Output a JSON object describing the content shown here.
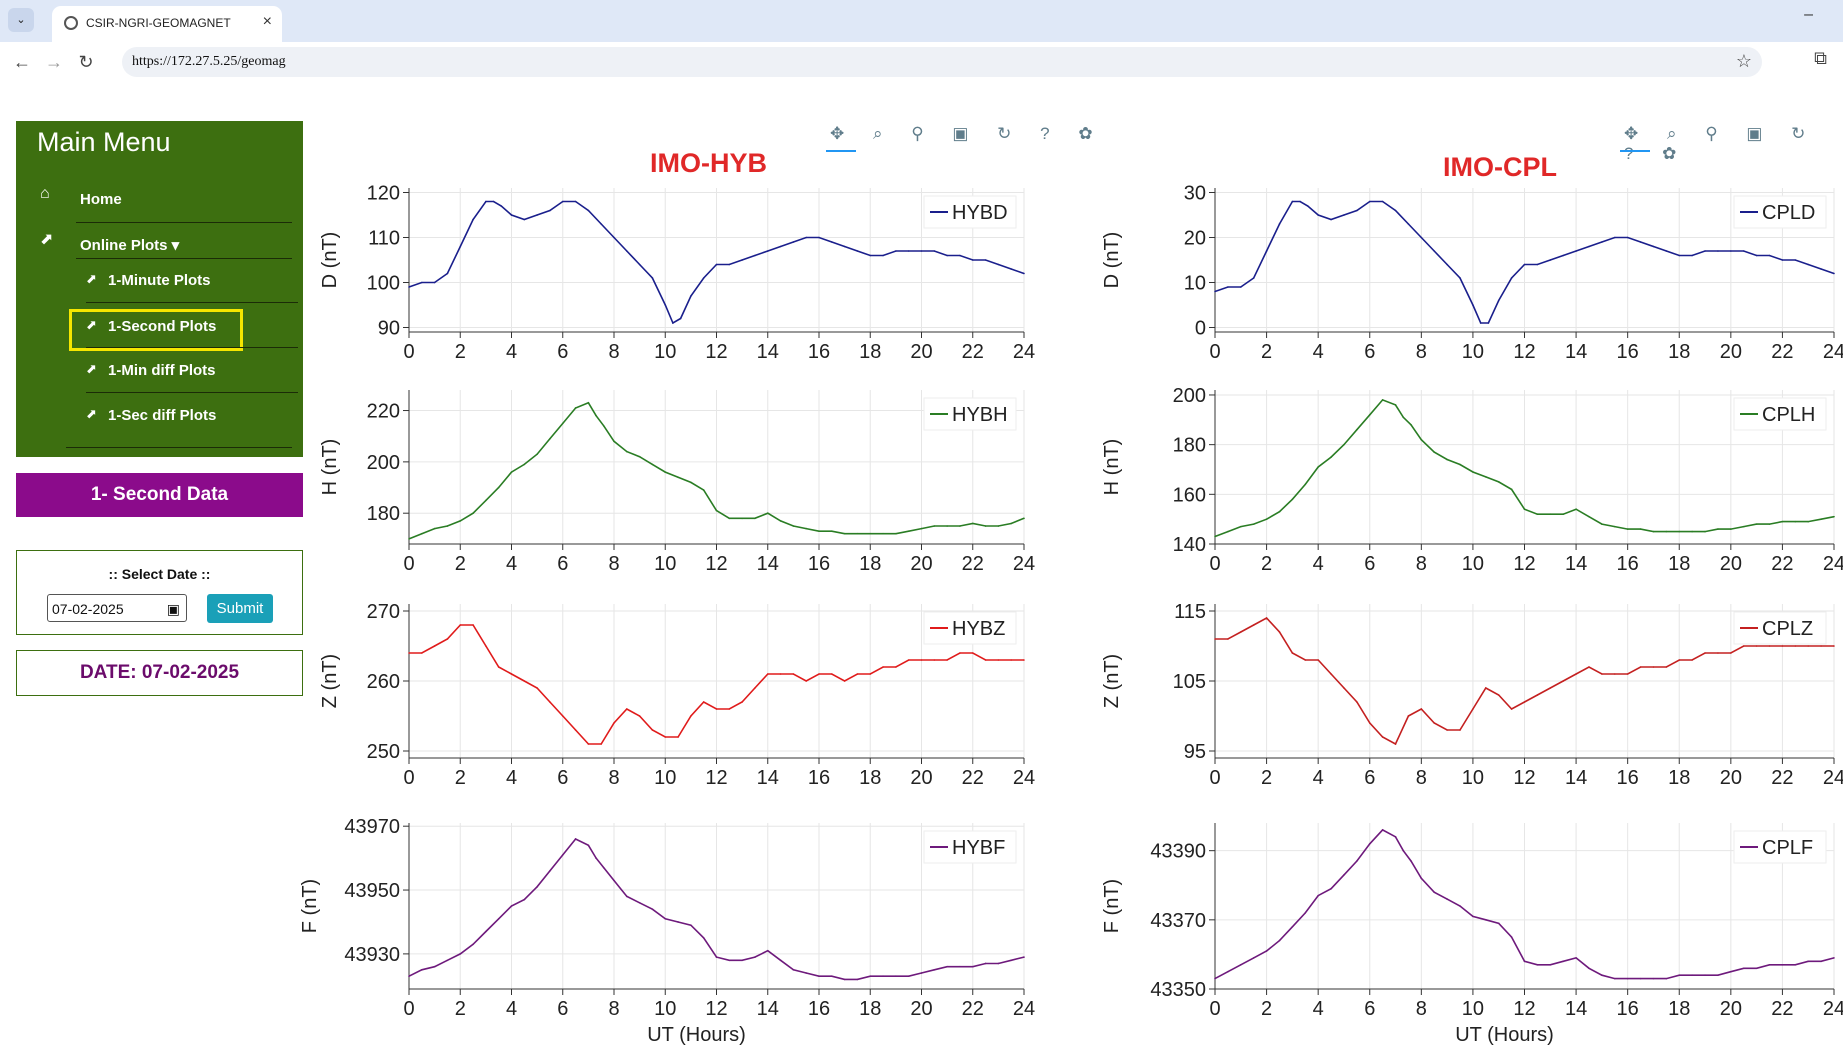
{
  "browser": {
    "tab_title": "CSIR-NGRI-GEOMAGNET",
    "tab_close": "×",
    "menu_btn": "⌄",
    "minimize": "–",
    "url": "https://172.27.5.25/geomag",
    "back": "←",
    "forward": "→",
    "reload": "↻",
    "star": "☆",
    "extensions": "⧉"
  },
  "sidebar": {
    "title": "Main Menu",
    "home": "Home",
    "online_plots": "Online Plots ▾",
    "items": [
      {
        "label": "1-Minute Plots"
      },
      {
        "label": "1-Second Plots",
        "highlighted": true
      },
      {
        "label": "1-Min diff Plots"
      },
      {
        "label": "1-Sec diff Plots"
      }
    ],
    "item_icon": "chart-line-icon",
    "highlight_color": "#f5e600",
    "second_data_button": "1- Second Data",
    "select_date_label": ":: Select Date ::",
    "date_value": "07-02-2025",
    "submit_label": "Submit",
    "date_display": "DATE: 07-02-2025"
  },
  "plot_toolbar": {
    "icons": [
      "pan-icon",
      "box-zoom-icon",
      "wheel-zoom-icon",
      "save-icon",
      "reset-icon",
      "help-icon",
      "bokeh-logo"
    ],
    "glyphs": "✥ ⌕ ⚲ ▣ ↻ ? ✿"
  },
  "stations": [
    {
      "name": "IMO-HYB"
    },
    {
      "name": "IMO-CPL"
    }
  ],
  "chart_data": [
    {
      "type": "line",
      "station": "IMO-HYB",
      "component": "D",
      "ylabel": "D (nT)",
      "xlabel": "",
      "xlim": [
        0,
        24
      ],
      "ylim": [
        89,
        121
      ],
      "xticks": [
        "0",
        "2",
        "4",
        "6",
        "8",
        "10",
        "12",
        "14",
        "16",
        "18",
        "20",
        "22",
        "24"
      ],
      "yticks": [
        "90",
        "100",
        "110",
        "120"
      ],
      "ytick_values": [
        90,
        100,
        110,
        120
      ],
      "legend": "HYBD",
      "color": "#1a1f8c",
      "grid": true,
      "x": [
        0,
        0.5,
        1,
        1.5,
        2,
        2.5,
        3,
        3.3,
        3.6,
        4,
        4.5,
        5,
        5.5,
        6,
        6.5,
        7,
        7.5,
        8,
        8.5,
        9,
        9.5,
        10,
        10.3,
        10.6,
        11,
        11.5,
        12,
        12.5,
        13,
        13.5,
        14,
        14.5,
        15,
        15.5,
        16,
        16.5,
        17,
        17.5,
        18,
        18.5,
        19,
        19.5,
        20,
        20.5,
        21,
        21.5,
        22,
        22.5,
        23,
        23.5,
        24
      ],
      "y": [
        99,
        100,
        100,
        102,
        108,
        114,
        118,
        118,
        117,
        115,
        114,
        115,
        116,
        118,
        118,
        116,
        113,
        110,
        107,
        104,
        101,
        95,
        91,
        92,
        97,
        101,
        104,
        104,
        105,
        106,
        107,
        108,
        109,
        110,
        110,
        109,
        108,
        107,
        106,
        106,
        107,
        107,
        107,
        107,
        106,
        106,
        105,
        105,
        104,
        103,
        102
      ]
    },
    {
      "type": "line",
      "station": "IMO-HYB",
      "component": "H",
      "ylabel": "H (nT)",
      "xlabel": "",
      "xlim": [
        0,
        24
      ],
      "ylim": [
        168,
        228
      ],
      "xticks": [
        "0",
        "2",
        "4",
        "6",
        "8",
        "10",
        "12",
        "14",
        "16",
        "18",
        "20",
        "22",
        "24"
      ],
      "yticks": [
        "180",
        "200",
        "220"
      ],
      "ytick_values": [
        180,
        200,
        220
      ],
      "legend": "HYBH",
      "color": "#2a7d24",
      "grid": true,
      "x": [
        0,
        0.5,
        1,
        1.5,
        2,
        2.5,
        3,
        3.5,
        4,
        4.5,
        5,
        5.5,
        6,
        6.5,
        7,
        7.3,
        7.6,
        8,
        8.5,
        9,
        9.5,
        10,
        10.5,
        11,
        11.5,
        12,
        12.5,
        13,
        13.5,
        14,
        14.5,
        15,
        15.5,
        16,
        16.5,
        17,
        17.5,
        18,
        18.5,
        19,
        19.5,
        20,
        20.5,
        21,
        21.5,
        22,
        22.5,
        23,
        23.5,
        24
      ],
      "y": [
        170,
        172,
        174,
        175,
        177,
        180,
        185,
        190,
        196,
        199,
        203,
        209,
        215,
        221,
        223,
        218,
        214,
        208,
        204,
        202,
        199,
        196,
        194,
        192,
        189,
        181,
        178,
        178,
        178,
        180,
        177,
        175,
        174,
        173,
        173,
        172,
        172,
        172,
        172,
        172,
        173,
        174,
        175,
        175,
        175,
        176,
        175,
        175,
        176,
        178
      ]
    },
    {
      "type": "line",
      "station": "IMO-HYB",
      "component": "Z",
      "ylabel": "Z (nT)",
      "xlabel": "",
      "xlim": [
        0,
        24
      ],
      "ylim": [
        249,
        271
      ],
      "xticks": [
        "0",
        "2",
        "4",
        "6",
        "8",
        "10",
        "12",
        "14",
        "16",
        "18",
        "20",
        "22",
        "24"
      ],
      "yticks": [
        "250",
        "260",
        "270"
      ],
      "ytick_values": [
        250,
        260,
        270
      ],
      "legend": "HYBZ",
      "color": "#e01b1b",
      "grid": true,
      "x": [
        0,
        0.5,
        1,
        1.5,
        2,
        2.5,
        3,
        3.5,
        4,
        4.5,
        5,
        5.5,
        6,
        6.5,
        7,
        7.5,
        8,
        8.5,
        9,
        9.5,
        10,
        10.5,
        11,
        11.5,
        12,
        12.5,
        13,
        13.5,
        14,
        14.5,
        15,
        15.5,
        16,
        16.5,
        17,
        17.5,
        18,
        18.5,
        19,
        19.5,
        20,
        20.5,
        21,
        21.5,
        22,
        22.5,
        23,
        23.5,
        24
      ],
      "y": [
        264,
        264,
        265,
        266,
        268,
        268,
        265,
        262,
        261,
        260,
        259,
        257,
        255,
        253,
        251,
        251,
        254,
        256,
        255,
        253,
        252,
        252,
        255,
        257,
        256,
        256,
        257,
        259,
        261,
        261,
        261,
        260,
        261,
        261,
        260,
        261,
        261,
        262,
        262,
        263,
        263,
        263,
        263,
        264,
        264,
        263,
        263,
        263,
        263
      ]
    },
    {
      "type": "line",
      "station": "IMO-HYB",
      "component": "F",
      "ylabel": "F (nT)",
      "xlabel": "UT (Hours)",
      "xlim": [
        0,
        24
      ],
      "ylim": [
        43919,
        43971
      ],
      "xticks": [
        "0",
        "2",
        "4",
        "6",
        "8",
        "10",
        "12",
        "14",
        "16",
        "18",
        "20",
        "22",
        "24"
      ],
      "yticks": [
        "43930",
        "43950",
        "43970"
      ],
      "ytick_values": [
        43930,
        43950,
        43970
      ],
      "legend": "HYBF",
      "color": "#6e1a7c",
      "grid": true,
      "x": [
        0,
        0.5,
        1,
        1.5,
        2,
        2.5,
        3,
        3.5,
        4,
        4.5,
        5,
        5.5,
        6,
        6.5,
        7,
        7.3,
        7.6,
        8,
        8.5,
        9,
        9.5,
        10,
        10.5,
        11,
        11.5,
        12,
        12.5,
        13,
        13.5,
        14,
        14.5,
        15,
        15.5,
        16,
        16.5,
        17,
        17.5,
        18,
        18.5,
        19,
        19.5,
        20,
        20.5,
        21,
        21.5,
        22,
        22.5,
        23,
        23.5,
        24
      ],
      "y": [
        43923,
        43925,
        43926,
        43928,
        43930,
        43933,
        43937,
        43941,
        43945,
        43947,
        43951,
        43956,
        43961,
        43966,
        43964,
        43960,
        43957,
        43953,
        43948,
        43946,
        43944,
        43941,
        43940,
        43939,
        43935,
        43929,
        43928,
        43928,
        43929,
        43931,
        43928,
        43925,
        43924,
        43923,
        43923,
        43922,
        43922,
        43923,
        43923,
        43923,
        43923,
        43924,
        43925,
        43926,
        43926,
        43926,
        43927,
        43927,
        43928,
        43929
      ]
    },
    {
      "type": "line",
      "station": "IMO-CPL",
      "component": "D",
      "ylabel": "D (nT)",
      "xlabel": "",
      "xlim": [
        0,
        24
      ],
      "ylim": [
        -1,
        31
      ],
      "xticks": [
        "0",
        "2",
        "4",
        "6",
        "8",
        "10",
        "12",
        "14",
        "16",
        "18",
        "20",
        "22",
        "24"
      ],
      "yticks": [
        "0",
        "10",
        "20",
        "30"
      ],
      "ytick_values": [
        0,
        10,
        20,
        30
      ],
      "legend": "CPLD",
      "color": "#1a1f8c",
      "grid": true,
      "x": [
        0,
        0.5,
        1,
        1.5,
        2,
        2.5,
        3,
        3.3,
        3.6,
        4,
        4.5,
        5,
        5.5,
        6,
        6.5,
        7,
        7.5,
        8,
        8.5,
        9,
        9.5,
        10,
        10.3,
        10.6,
        11,
        11.5,
        12,
        12.5,
        13,
        13.5,
        14,
        14.5,
        15,
        15.5,
        16,
        16.5,
        17,
        17.5,
        18,
        18.5,
        19,
        19.5,
        20,
        20.5,
        21,
        21.5,
        22,
        22.5,
        23,
        23.5,
        24
      ],
      "y": [
        8,
        9,
        9,
        11,
        17,
        23,
        28,
        28,
        27,
        25,
        24,
        25,
        26,
        28,
        28,
        26,
        23,
        20,
        17,
        14,
        11,
        5,
        1,
        1,
        6,
        11,
        14,
        14,
        15,
        16,
        17,
        18,
        19,
        20,
        20,
        19,
        18,
        17,
        16,
        16,
        17,
        17,
        17,
        17,
        16,
        16,
        15,
        15,
        14,
        13,
        12
      ]
    },
    {
      "type": "line",
      "station": "IMO-CPL",
      "component": "H",
      "ylabel": "H (nT)",
      "xlabel": "",
      "xlim": [
        0,
        24
      ],
      "ylim": [
        140,
        202
      ],
      "xticks": [
        "0",
        "2",
        "4",
        "6",
        "8",
        "10",
        "12",
        "14",
        "16",
        "18",
        "20",
        "22",
        "24"
      ],
      "yticks": [
        "140",
        "160",
        "180",
        "200"
      ],
      "ytick_values": [
        140,
        160,
        180,
        200
      ],
      "legend": "CPLH",
      "color": "#2a7d24",
      "grid": true,
      "x": [
        0,
        0.5,
        1,
        1.5,
        2,
        2.5,
        3,
        3.5,
        4,
        4.5,
        5,
        5.5,
        6,
        6.5,
        7,
        7.3,
        7.6,
        8,
        8.5,
        9,
        9.5,
        10,
        10.5,
        11,
        11.5,
        12,
        12.5,
        13,
        13.5,
        14,
        14.5,
        15,
        15.5,
        16,
        16.5,
        17,
        17.5,
        18,
        18.5,
        19,
        19.5,
        20,
        20.5,
        21,
        21.5,
        22,
        22.5,
        23,
        23.5,
        24
      ],
      "y": [
        143,
        145,
        147,
        148,
        150,
        153,
        158,
        164,
        171,
        175,
        180,
        186,
        192,
        198,
        196,
        191,
        188,
        182,
        177,
        174,
        172,
        169,
        167,
        165,
        162,
        154,
        152,
        152,
        152,
        154,
        151,
        148,
        147,
        146,
        146,
        145,
        145,
        145,
        145,
        145,
        146,
        146,
        147,
        148,
        148,
        149,
        149,
        149,
        150,
        151
      ]
    },
    {
      "type": "line",
      "station": "IMO-CPL",
      "component": "Z",
      "ylabel": "Z (nT)",
      "xlabel": "",
      "xlim": [
        0,
        24
      ],
      "ylim": [
        94,
        116
      ],
      "xticks": [
        "0",
        "2",
        "4",
        "6",
        "8",
        "10",
        "12",
        "14",
        "16",
        "18",
        "20",
        "22",
        "24"
      ],
      "yticks": [
        "95",
        "105",
        "115"
      ],
      "ytick_values": [
        95,
        105,
        115
      ],
      "legend": "CPLZ",
      "color": "#c42020",
      "grid": true,
      "x": [
        0,
        0.5,
        1,
        1.5,
        2,
        2.5,
        3,
        3.5,
        4,
        4.5,
        5,
        5.5,
        6,
        6.5,
        7,
        7.5,
        8,
        8.5,
        9,
        9.5,
        10,
        10.5,
        11,
        11.5,
        12,
        12.5,
        13,
        13.5,
        14,
        14.5,
        15,
        15.5,
        16,
        16.5,
        17,
        17.5,
        18,
        18.5,
        19,
        19.5,
        20,
        20.5,
        21,
        21.5,
        22,
        22.5,
        23,
        23.5,
        24
      ],
      "y": [
        111,
        111,
        112,
        113,
        114,
        112,
        109,
        108,
        108,
        106,
        104,
        102,
        99,
        97,
        96,
        100,
        101,
        99,
        98,
        98,
        101,
        104,
        103,
        101,
        102,
        103,
        104,
        105,
        106,
        107,
        106,
        106,
        106,
        107,
        107,
        107,
        108,
        108,
        109,
        109,
        109,
        110,
        110,
        110,
        110,
        110,
        110,
        110,
        110
      ]
    },
    {
      "type": "line",
      "station": "IMO-CPL",
      "component": "F",
      "ylabel": "F (nT)",
      "xlabel": "UT (Hours)",
      "xlim": [
        0,
        24
      ],
      "ylim": [
        43350,
        43398
      ],
      "xticks": [
        "0",
        "2",
        "4",
        "6",
        "8",
        "10",
        "12",
        "14",
        "16",
        "18",
        "20",
        "22",
        "24"
      ],
      "yticks": [
        "43350",
        "43370",
        "43390"
      ],
      "ytick_values": [
        43350,
        43370,
        43390
      ],
      "legend": "CPLF",
      "color": "#6e1a7c",
      "grid": true,
      "x": [
        0,
        0.5,
        1,
        1.5,
        2,
        2.5,
        3,
        3.5,
        4,
        4.5,
        5,
        5.5,
        6,
        6.5,
        7,
        7.3,
        7.6,
        8,
        8.5,
        9,
        9.5,
        10,
        10.5,
        11,
        11.5,
        12,
        12.5,
        13,
        13.5,
        14,
        14.5,
        15,
        15.5,
        16,
        16.5,
        17,
        17.5,
        18,
        18.5,
        19,
        19.5,
        20,
        20.5,
        21,
        21.5,
        22,
        22.5,
        23,
        23.5,
        24
      ],
      "y": [
        43353,
        43355,
        43357,
        43359,
        43361,
        43364,
        43368,
        43372,
        43377,
        43379,
        43383,
        43387,
        43392,
        43396,
        43394,
        43390,
        43387,
        43382,
        43378,
        43376,
        43374,
        43371,
        43370,
        43369,
        43365,
        43358,
        43357,
        43357,
        43358,
        43359,
        43356,
        43354,
        43353,
        43353,
        43353,
        43353,
        43353,
        43354,
        43354,
        43354,
        43354,
        43355,
        43356,
        43356,
        43357,
        43357,
        43357,
        43358,
        43358,
        43359
      ]
    }
  ]
}
